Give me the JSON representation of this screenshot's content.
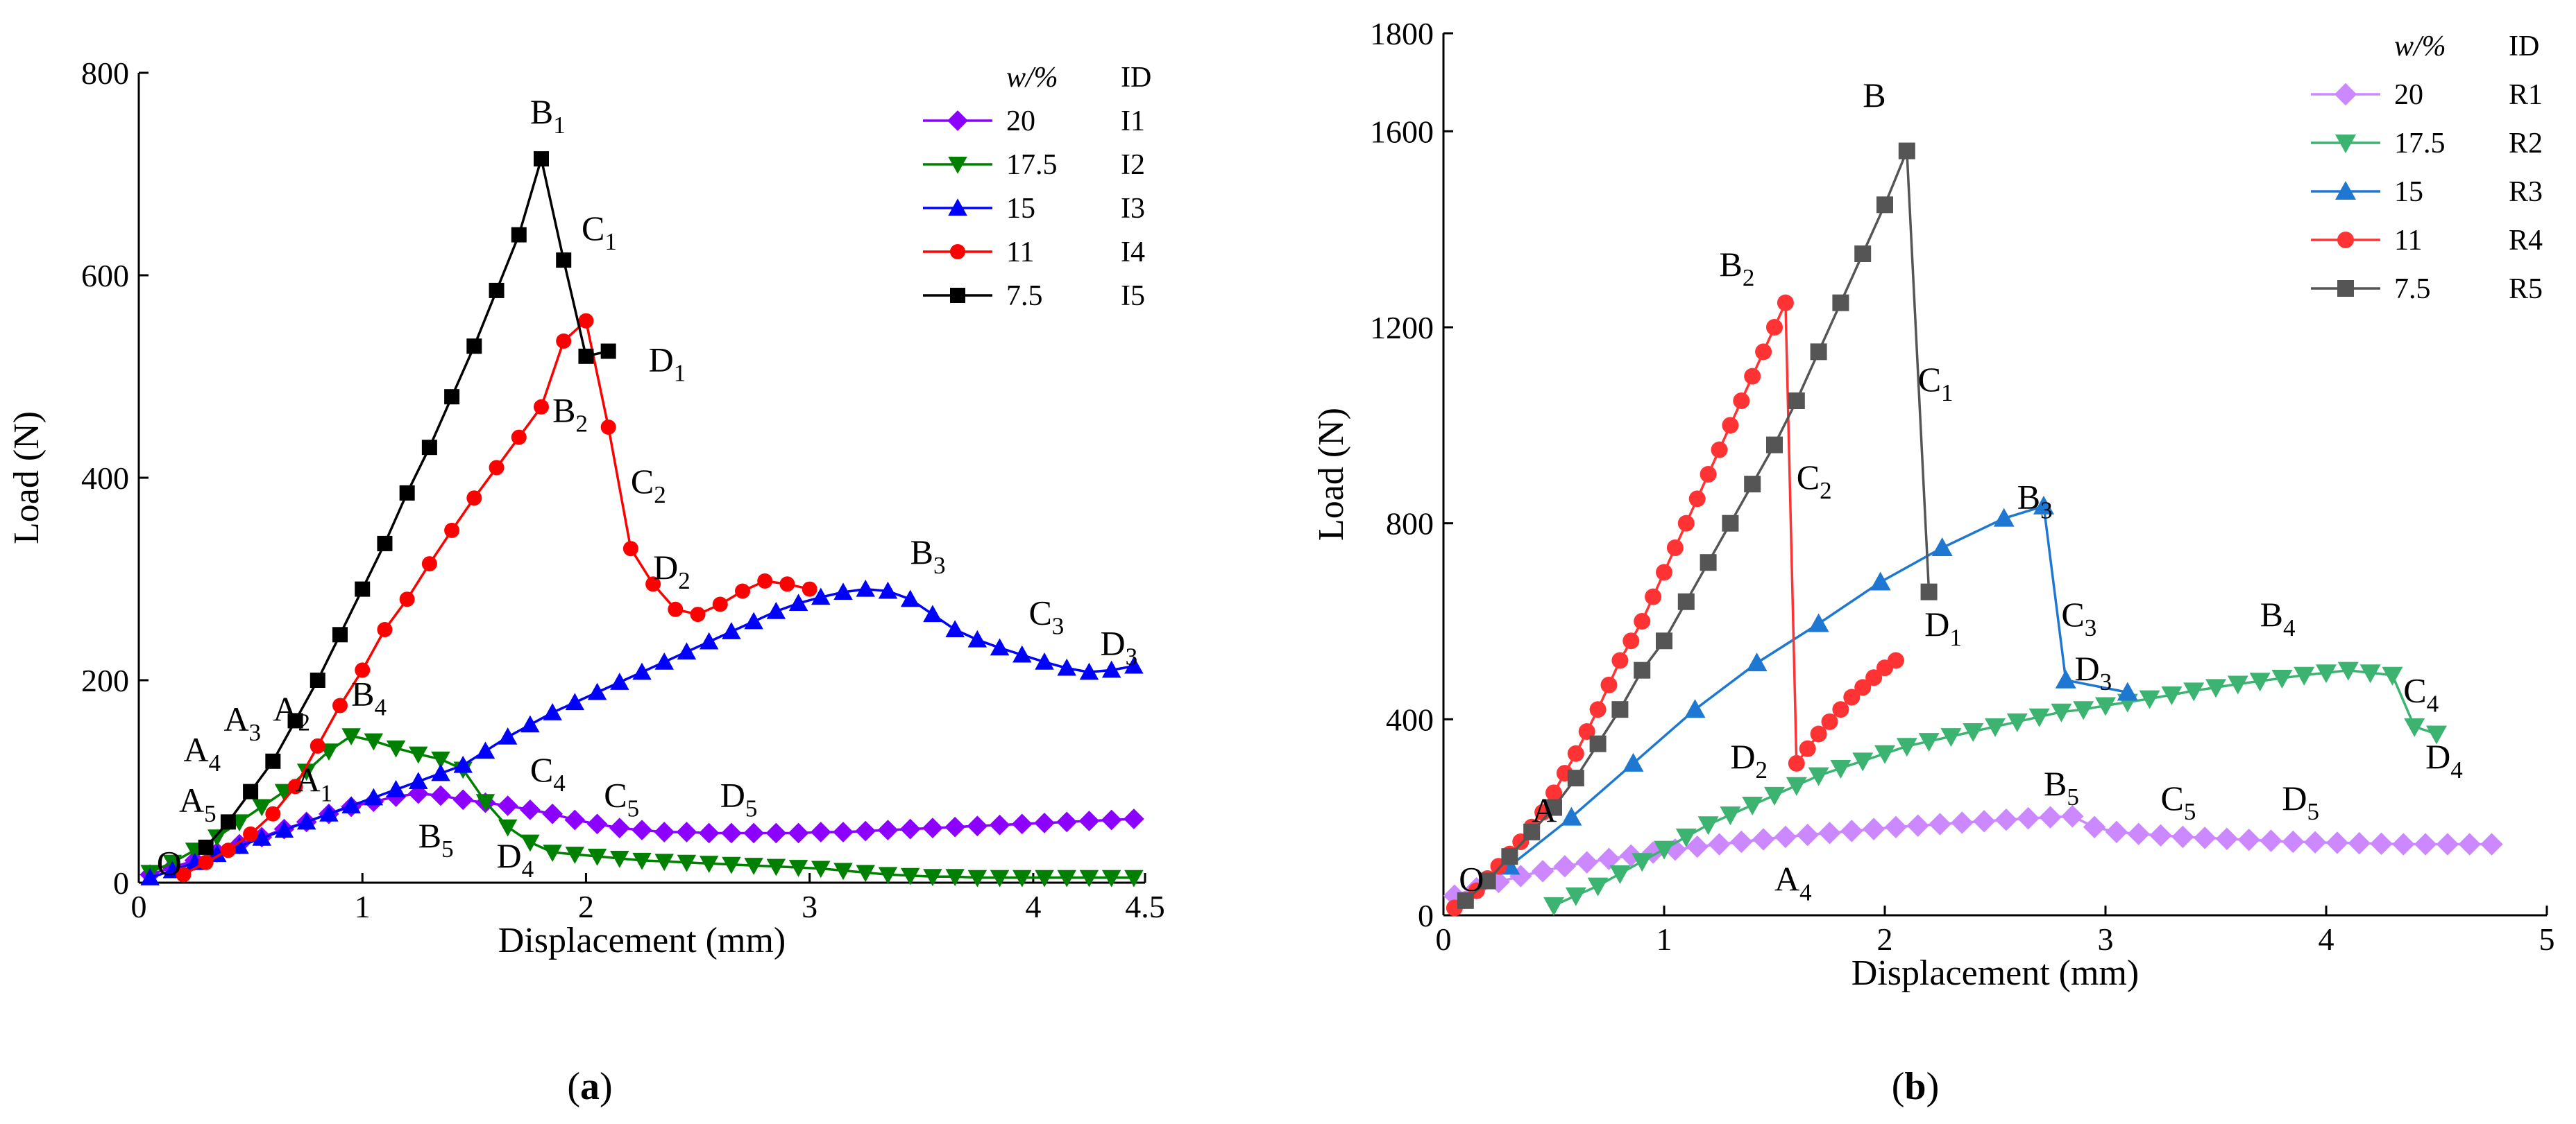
{
  "chart_data": [
    {
      "type": "line",
      "panel_label": "(a)",
      "xlabel": "Displacement (mm)",
      "ylabel": "Load (N)",
      "xlim": [
        0,
        4.5
      ],
      "ylim": [
        0,
        800
      ],
      "xticks": [
        0,
        1,
        2,
        3,
        4,
        4.5
      ],
      "xtick_labels": [
        "0",
        "1",
        "2",
        "3",
        "4",
        "4.5"
      ],
      "yticks": [
        0,
        200,
        400,
        600,
        800
      ],
      "ytick_labels": [
        "0",
        "200",
        "400",
        "600",
        "800"
      ],
      "grid": false,
      "legend_position": "top-right",
      "legend_header": [
        "w/%",
        "ID"
      ],
      "series": [
        {
          "name": "I1",
          "w_label": "20",
          "color": "#8B00FF",
          "marker": "diamond",
          "x": [
            0.05,
            0.15,
            0.25,
            0.35,
            0.45,
            0.55,
            0.65,
            0.75,
            0.85,
            0.95,
            1.05,
            1.15,
            1.25,
            1.35,
            1.45,
            1.55,
            1.65,
            1.75,
            1.85,
            1.95,
            2.05,
            2.15,
            2.25,
            2.35,
            2.45,
            2.55,
            2.65,
            2.75,
            2.85,
            2.95,
            3.05,
            3.15,
            3.25,
            3.35,
            3.45,
            3.55,
            3.65,
            3.75,
            3.85,
            3.95,
            4.05,
            4.15,
            4.25,
            4.35,
            4.45
          ],
          "y": [
            8,
            15,
            22,
            30,
            38,
            45,
            53,
            60,
            68,
            75,
            80,
            85,
            88,
            86,
            82,
            79,
            76,
            72,
            68,
            62,
            58,
            54,
            52,
            50,
            50,
            49,
            49,
            49,
            49,
            49,
            50,
            50,
            51,
            52,
            53,
            54,
            55,
            56,
            57,
            58,
            59,
            60,
            61,
            62,
            63
          ]
        },
        {
          "name": "I2",
          "w_label": "17.5",
          "color": "#008000",
          "marker": "triangle-down",
          "x": [
            0.05,
            0.15,
            0.25,
            0.35,
            0.45,
            0.55,
            0.65,
            0.75,
            0.85,
            0.95,
            1.05,
            1.15,
            1.25,
            1.35,
            1.45,
            1.55,
            1.65,
            1.75,
            1.85,
            1.95,
            2.05,
            2.15,
            2.25,
            2.35,
            2.45,
            2.55,
            2.65,
            2.75,
            2.85,
            2.95,
            3.05,
            3.15,
            3.25,
            3.35,
            3.45,
            3.55,
            3.65,
            3.75,
            3.85,
            3.95,
            4.05,
            4.15,
            4.25,
            4.35,
            4.45
          ],
          "y": [
            10,
            20,
            32,
            45,
            60,
            75,
            90,
            110,
            130,
            145,
            140,
            133,
            127,
            122,
            112,
            80,
            55,
            40,
            30,
            28,
            26,
            24,
            22,
            21,
            20,
            19,
            18,
            17,
            16,
            15,
            14,
            12,
            10,
            8,
            7,
            6,
            6,
            5,
            5,
            5,
            5,
            5,
            5,
            5,
            5
          ]
        },
        {
          "name": "I3",
          "w_label": "15",
          "color": "#0000FF",
          "marker": "triangle-up",
          "x": [
            0.05,
            0.15,
            0.25,
            0.35,
            0.45,
            0.55,
            0.65,
            0.75,
            0.85,
            0.95,
            1.05,
            1.15,
            1.25,
            1.35,
            1.45,
            1.55,
            1.65,
            1.75,
            1.85,
            1.95,
            2.05,
            2.15,
            2.25,
            2.35,
            2.45,
            2.55,
            2.65,
            2.75,
            2.85,
            2.95,
            3.05,
            3.15,
            3.25,
            3.35,
            3.45,
            3.55,
            3.65,
            3.75,
            3.85,
            3.95,
            4.05,
            4.15,
            4.25,
            4.35,
            4.45
          ],
          "y": [
            5,
            12,
            20,
            28,
            36,
            44,
            52,
            60,
            68,
            76,
            84,
            92,
            100,
            108,
            116,
            130,
            144,
            156,
            168,
            178,
            188,
            198,
            208,
            218,
            228,
            238,
            248,
            258,
            268,
            276,
            282,
            287,
            290,
            288,
            280,
            265,
            250,
            240,
            232,
            225,
            218,
            212,
            208,
            210,
            214
          ]
        },
        {
          "name": "I4",
          "w_label": "11",
          "color": "#FF0000",
          "marker": "circle",
          "x": [
            0.2,
            0.3,
            0.4,
            0.5,
            0.6,
            0.7,
            0.8,
            0.9,
            1.0,
            1.1,
            1.2,
            1.3,
            1.4,
            1.5,
            1.6,
            1.7,
            1.8,
            1.9,
            2.0,
            2.1,
            2.2,
            2.3,
            2.4,
            2.5,
            2.6,
            2.7,
            2.8,
            2.9,
            3.0
          ],
          "y": [
            8,
            20,
            32,
            48,
            68,
            95,
            135,
            175,
            210,
            250,
            280,
            315,
            348,
            380,
            410,
            440,
            470,
            535,
            555,
            450,
            330,
            295,
            270,
            265,
            275,
            288,
            298,
            295,
            290
          ]
        },
        {
          "name": "I5",
          "w_label": "7.5",
          "color": "#000000",
          "marker": "square",
          "x": [
            0.3,
            0.4,
            0.5,
            0.6,
            0.7,
            0.8,
            0.9,
            1.0,
            1.1,
            1.2,
            1.3,
            1.4,
            1.5,
            1.6,
            1.7,
            1.8,
            1.9,
            2.0,
            2.1
          ],
          "y": [
            35,
            60,
            90,
            120,
            160,
            200,
            245,
            290,
            335,
            385,
            430,
            480,
            530,
            585,
            640,
            715,
            615,
            520,
            525
          ]
        }
      ],
      "annotations": [
        {
          "text": "O",
          "x": 0.08,
          "y": 8
        },
        {
          "text": "A",
          "sub": "5",
          "x": 0.18,
          "y": 70
        },
        {
          "text": "A",
          "sub": "4",
          "x": 0.2,
          "y": 120
        },
        {
          "text": "A",
          "sub": "3",
          "x": 0.38,
          "y": 150
        },
        {
          "text": "A",
          "sub": "2",
          "x": 0.6,
          "y": 160
        },
        {
          "text": "A",
          "sub": "1",
          "x": 0.7,
          "y": 90
        },
        {
          "text": "B",
          "sub": "1",
          "x": 1.75,
          "y": 750
        },
        {
          "text": "C",
          "sub": "1",
          "x": 1.98,
          "y": 635
        },
        {
          "text": "D",
          "sub": "1",
          "x": 2.28,
          "y": 505
        },
        {
          "text": "B",
          "sub": "2",
          "x": 1.85,
          "y": 455
        },
        {
          "text": "C",
          "sub": "2",
          "x": 2.2,
          "y": 385
        },
        {
          "text": "D",
          "sub": "2",
          "x": 2.3,
          "y": 300
        },
        {
          "text": "B",
          "sub": "3",
          "x": 3.45,
          "y": 315
        },
        {
          "text": "C",
          "sub": "3",
          "x": 3.98,
          "y": 255
        },
        {
          "text": "D",
          "sub": "3",
          "x": 4.3,
          "y": 225
        },
        {
          "text": "B",
          "sub": "4",
          "x": 0.95,
          "y": 175
        },
        {
          "text": "C",
          "sub": "4",
          "x": 1.75,
          "y": 100
        },
        {
          "text": "D",
          "sub": "4",
          "x": 1.6,
          "y": 15
        },
        {
          "text": "B",
          "sub": "5",
          "x": 1.25,
          "y": 35
        },
        {
          "text": "C",
          "sub": "5",
          "x": 2.08,
          "y": 75
        },
        {
          "text": "D",
          "sub": "5",
          "x": 2.6,
          "y": 75
        }
      ]
    },
    {
      "type": "line",
      "panel_label": "(b)",
      "xlabel": "Displacement (mm)",
      "ylabel": "Load (N)",
      "xlim": [
        0,
        5
      ],
      "ylim": [
        0,
        1800
      ],
      "xticks": [
        0,
        1,
        2,
        3,
        4,
        5
      ],
      "xtick_labels": [
        "0",
        "1",
        "2",
        "3",
        "4",
        "5"
      ],
      "yticks": [
        0,
        400,
        800,
        1200,
        1600,
        1800
      ],
      "ytick_labels": [
        "0",
        "400",
        "800",
        "1200",
        "1600",
        "1800"
      ],
      "grid": false,
      "legend_position": "top-right",
      "legend_header": [
        "w/%",
        "ID"
      ],
      "series": [
        {
          "name": "R1",
          "w_label": "20",
          "color": "#CC88FF",
          "marker": "diamond",
          "x": [
            0.05,
            0.15,
            0.25,
            0.35,
            0.45,
            0.55,
            0.65,
            0.75,
            0.85,
            0.95,
            1.05,
            1.15,
            1.25,
            1.35,
            1.45,
            1.55,
            1.65,
            1.75,
            1.85,
            1.95,
            2.05,
            2.15,
            2.25,
            2.35,
            2.45,
            2.55,
            2.65,
            2.75,
            2.85,
            2.95,
            3.05,
            3.15,
            3.25,
            3.35,
            3.45,
            3.55,
            3.65,
            3.75,
            3.85,
            3.95,
            4.05,
            4.15,
            4.25,
            4.35,
            4.45,
            4.55,
            4.65,
            4.75
          ],
          "y": [
            40,
            55,
            68,
            80,
            90,
            100,
            108,
            115,
            122,
            128,
            134,
            140,
            145,
            150,
            155,
            160,
            164,
            168,
            172,
            176,
            180,
            183,
            186,
            189,
            192,
            195,
            198,
            200,
            202,
            180,
            170,
            166,
            163,
            160,
            158,
            156,
            154,
            152,
            150,
            149,
            148,
            147,
            146,
            145,
            145,
            145,
            145,
            145
          ]
        },
        {
          "name": "R2",
          "w_label": "17.5",
          "color": "#3CB371",
          "marker": "triangle-down",
          "x": [
            0.5,
            0.6,
            0.7,
            0.8,
            0.9,
            1.0,
            1.1,
            1.2,
            1.3,
            1.4,
            1.5,
            1.6,
            1.7,
            1.8,
            1.9,
            2.0,
            2.1,
            2.2,
            2.3,
            2.4,
            2.5,
            2.6,
            2.7,
            2.8,
            2.9,
            3.0,
            3.1,
            3.2,
            3.3,
            3.4,
            3.5,
            3.6,
            3.7,
            3.8,
            3.9,
            4.0,
            4.1,
            4.2,
            4.3,
            4.4,
            4.5
          ],
          "y": [
            20,
            40,
            60,
            85,
            110,
            135,
            160,
            185,
            205,
            225,
            245,
            265,
            285,
            300,
            315,
            330,
            345,
            355,
            365,
            375,
            385,
            395,
            405,
            415,
            420,
            428,
            435,
            442,
            450,
            458,
            465,
            472,
            478,
            484,
            490,
            495,
            500,
            495,
            490,
            385,
            370
          ]
        },
        {
          "name": "R3",
          "w_label": "15",
          "color": "#1E78D2",
          "marker": "triangle-up",
          "x": [
            0.3,
            0.58,
            0.86,
            1.14,
            1.42,
            1.7,
            1.98,
            2.26,
            2.54,
            2.72,
            2.82,
            3.1
          ],
          "y": [
            100,
            200,
            310,
            420,
            515,
            595,
            680,
            750,
            810,
            835,
            480,
            455
          ]
        },
        {
          "name": "R4",
          "w_label": "11",
          "color": "#FF3333",
          "marker": "circle",
          "x": [
            0.05,
            0.1,
            0.15,
            0.2,
            0.25,
            0.3,
            0.35,
            0.4,
            0.45,
            0.5,
            0.55,
            0.6,
            0.65,
            0.7,
            0.75,
            0.8,
            0.85,
            0.9,
            0.95,
            1.0,
            1.05,
            1.1,
            1.15,
            1.2,
            1.25,
            1.3,
            1.35,
            1.4,
            1.45,
            1.5,
            1.55,
            1.6,
            1.65,
            1.7,
            1.75,
            1.8,
            1.85,
            1.9,
            1.95,
            2.0,
            2.05
          ],
          "y": [
            15,
            30,
            50,
            75,
            100,
            125,
            150,
            180,
            210,
            250,
            290,
            330,
            375,
            420,
            470,
            520,
            560,
            600,
            650,
            700,
            750,
            800,
            850,
            900,
            950,
            1000,
            1050,
            1100,
            1150,
            1200,
            1250,
            310,
            340,
            370,
            395,
            420,
            445,
            465,
            485,
            505,
            520
          ]
        },
        {
          "name": "R5",
          "w_label": "7.5",
          "color": "#555555",
          "marker": "square",
          "x": [
            0.1,
            0.2,
            0.3,
            0.4,
            0.5,
            0.6,
            0.7,
            0.8,
            0.9,
            1.0,
            1.1,
            1.2,
            1.3,
            1.4,
            1.5,
            1.6,
            1.7,
            1.8,
            1.9,
            2.0,
            2.1,
            2.2
          ],
          "y": [
            30,
            70,
            120,
            170,
            220,
            280,
            350,
            420,
            500,
            560,
            640,
            720,
            800,
            880,
            960,
            1050,
            1150,
            1250,
            1350,
            1450,
            1560,
            660
          ]
        }
      ],
      "annotations": [
        {
          "text": "O",
          "x": 0.07,
          "y": 50
        },
        {
          "text": "A",
          "sub": "",
          "x": 0.4,
          "y": 190
        },
        {
          "text": "B",
          "sub": "",
          "x": 1.9,
          "y": 1650
        },
        {
          "text": "C",
          "sub": "1",
          "x": 2.15,
          "y": 1070
        },
        {
          "text": "D",
          "sub": "1",
          "x": 2.18,
          "y": 570
        },
        {
          "text": "B",
          "sub": "2",
          "x": 1.25,
          "y": 1305
        },
        {
          "text": "C",
          "sub": "2",
          "x": 1.6,
          "y": 870
        },
        {
          "text": "D",
          "sub": "2",
          "x": 1.3,
          "y": 300
        },
        {
          "text": "B",
          "sub": "3",
          "x": 2.6,
          "y": 830
        },
        {
          "text": "C",
          "sub": "3",
          "x": 2.8,
          "y": 590
        },
        {
          "text": "D",
          "sub": "3",
          "x": 2.86,
          "y": 480
        },
        {
          "text": "B",
          "sub": "4",
          "x": 3.7,
          "y": 590
        },
        {
          "text": "C",
          "sub": "4",
          "x": 4.35,
          "y": 435
        },
        {
          "text": "D",
          "sub": "4",
          "x": 4.45,
          "y": 300
        },
        {
          "text": "B",
          "sub": "5",
          "x": 2.72,
          "y": 245
        },
        {
          "text": "C",
          "sub": "5",
          "x": 3.25,
          "y": 215
        },
        {
          "text": "D",
          "sub": "5",
          "x": 3.8,
          "y": 215
        },
        {
          "text": "A",
          "sub": "4",
          "x": 1.5,
          "y": 50
        }
      ]
    }
  ]
}
